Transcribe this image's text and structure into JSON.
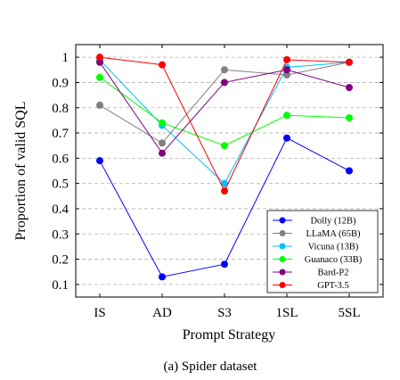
{
  "chart_data": {
    "type": "line",
    "categories": [
      "IS",
      "AD",
      "S3",
      "1SL",
      "5SL"
    ],
    "xlabel": "Prompt Strategy",
    "ylabel": "Proportion of valid SQL",
    "ylim": [
      0.05,
      1.05
    ],
    "yticks": [
      "0.1",
      "0.2",
      "0.3",
      "0.4",
      "0.5",
      "0.6",
      "0.7",
      "0.8",
      "0.9",
      "1"
    ],
    "grid": "horizontal-dashed",
    "legend_position": "bottom-right",
    "caption": "(a) Spider dataset",
    "series": [
      {
        "name": "Dolly (12B)",
        "color": "#0000ff",
        "values": [
          0.59,
          0.13,
          0.18,
          0.68,
          0.55
        ]
      },
      {
        "name": "LLaMA (65B)",
        "color": "#808080",
        "values": [
          0.81,
          0.66,
          0.95,
          0.93,
          0.98
        ]
      },
      {
        "name": "Vicuna (13B)",
        "color": "#00bfff",
        "values": [
          0.99,
          0.73,
          0.5,
          0.96,
          0.98
        ]
      },
      {
        "name": "Guanaco (33B)",
        "color": "#00ff00",
        "values": [
          0.92,
          0.74,
          0.65,
          0.77,
          0.76
        ]
      },
      {
        "name": "Bard-P2",
        "color": "#800080",
        "values": [
          0.98,
          0.62,
          0.9,
          0.95,
          0.88
        ]
      },
      {
        "name": "GPT-3.5",
        "color": "#ff0000",
        "values": [
          1.0,
          0.97,
          0.47,
          0.99,
          0.98
        ]
      }
    ]
  }
}
